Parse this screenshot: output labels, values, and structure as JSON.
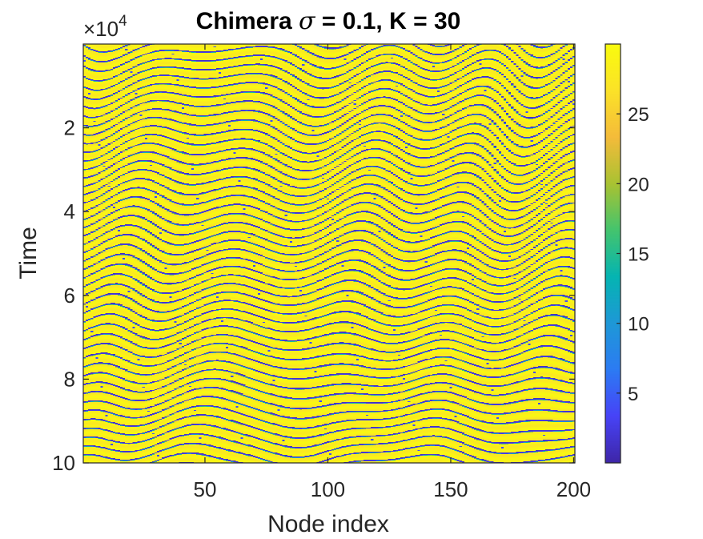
{
  "chart_data": {
    "type": "heatmap",
    "title_parts": {
      "prefix": "Chimera ",
      "symbol": "σ",
      "suffix": " = 0.1, K = 30"
    },
    "xlabel": "Node index",
    "ylabel": "Time",
    "y_multiplier": {
      "base": "×10",
      "exponent": "4"
    },
    "xlim": [
      1,
      200
    ],
    "ylim": [
      0,
      100000
    ],
    "y_reversed": true,
    "x_ticks": [
      {
        "value": 50,
        "label": "50"
      },
      {
        "value": 100,
        "label": "100"
      },
      {
        "value": 150,
        "label": "150"
      },
      {
        "value": 200,
        "label": "200"
      }
    ],
    "y_ticks": [
      {
        "value": 20000,
        "label": "2"
      },
      {
        "value": 40000,
        "label": "4"
      },
      {
        "value": 60000,
        "label": "6"
      },
      {
        "value": 80000,
        "label": "8"
      },
      {
        "value": 100000,
        "label": "10"
      }
    ],
    "colorbar": {
      "colormap": "parula",
      "clim": [
        0,
        30
      ],
      "ticks": [
        {
          "value": 5,
          "label": "5"
        },
        {
          "value": 10,
          "label": "10"
        },
        {
          "value": 15,
          "label": "15"
        },
        {
          "value": 20,
          "label": "20"
        },
        {
          "value": 25,
          "label": "25"
        }
      ]
    },
    "colormap_stops": [
      "#3e26a8",
      "#4743f7",
      "#2c7bf3",
      "#1e98d7",
      "#05b4b2",
      "#44c46e",
      "#a9c232",
      "#f4bb3a",
      "#fbe228",
      "#f9fb0e"
    ]
  }
}
